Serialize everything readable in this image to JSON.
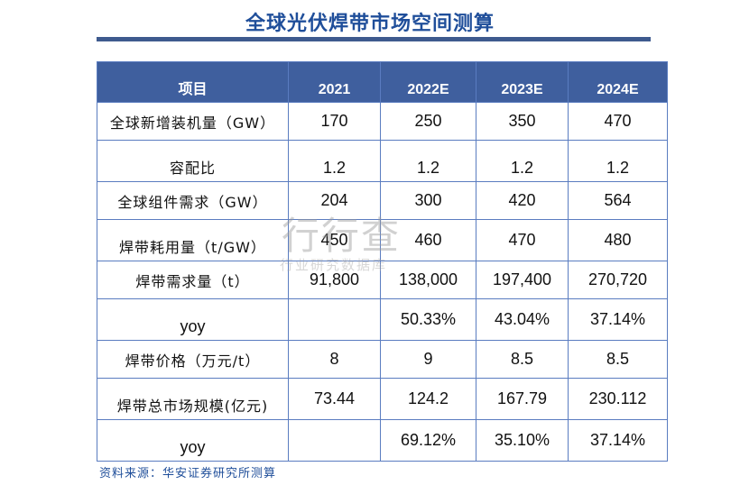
{
  "title": "全球光伏焊带市场空间测算",
  "table": {
    "headers": [
      "项目",
      "2021",
      "2022E",
      "2023E",
      "2024E"
    ],
    "rows": [
      [
        "全球新增装机量（GW）",
        "170",
        "250",
        "350",
        "470"
      ],
      [
        "容配比",
        "1.2",
        "1.2",
        "1.2",
        "1.2"
      ],
      [
        "全球组件需求（GW）",
        "204",
        "300",
        "420",
        "564"
      ],
      [
        "焊带耗用量（t/GW）",
        "450",
        "460",
        "470",
        "480"
      ],
      [
        "焊带需求量（t）",
        "91,800",
        "138,000",
        "197,400",
        "270,720"
      ],
      [
        "yoy",
        "",
        "50.33%",
        "43.04%",
        "37.14%"
      ],
      [
        "焊带价格（万元/t）",
        "8",
        "9",
        "8.5",
        "8.5"
      ],
      [
        "焊带总市场规模(亿元)",
        "73.44",
        "124.2",
        "167.79",
        "230.112"
      ],
      [
        "yoy",
        "",
        "69.12%",
        "35.10%",
        "37.14%"
      ]
    ]
  },
  "source": "资料来源：华安证券研究所测算",
  "watermark": {
    "main": "行行查",
    "sub": "行业研究数据库"
  },
  "colors": {
    "title": "#1f4e9a",
    "header_bg": "#3f5f9e",
    "border": "#5a7cc0",
    "rule": "#3e5a8e"
  }
}
